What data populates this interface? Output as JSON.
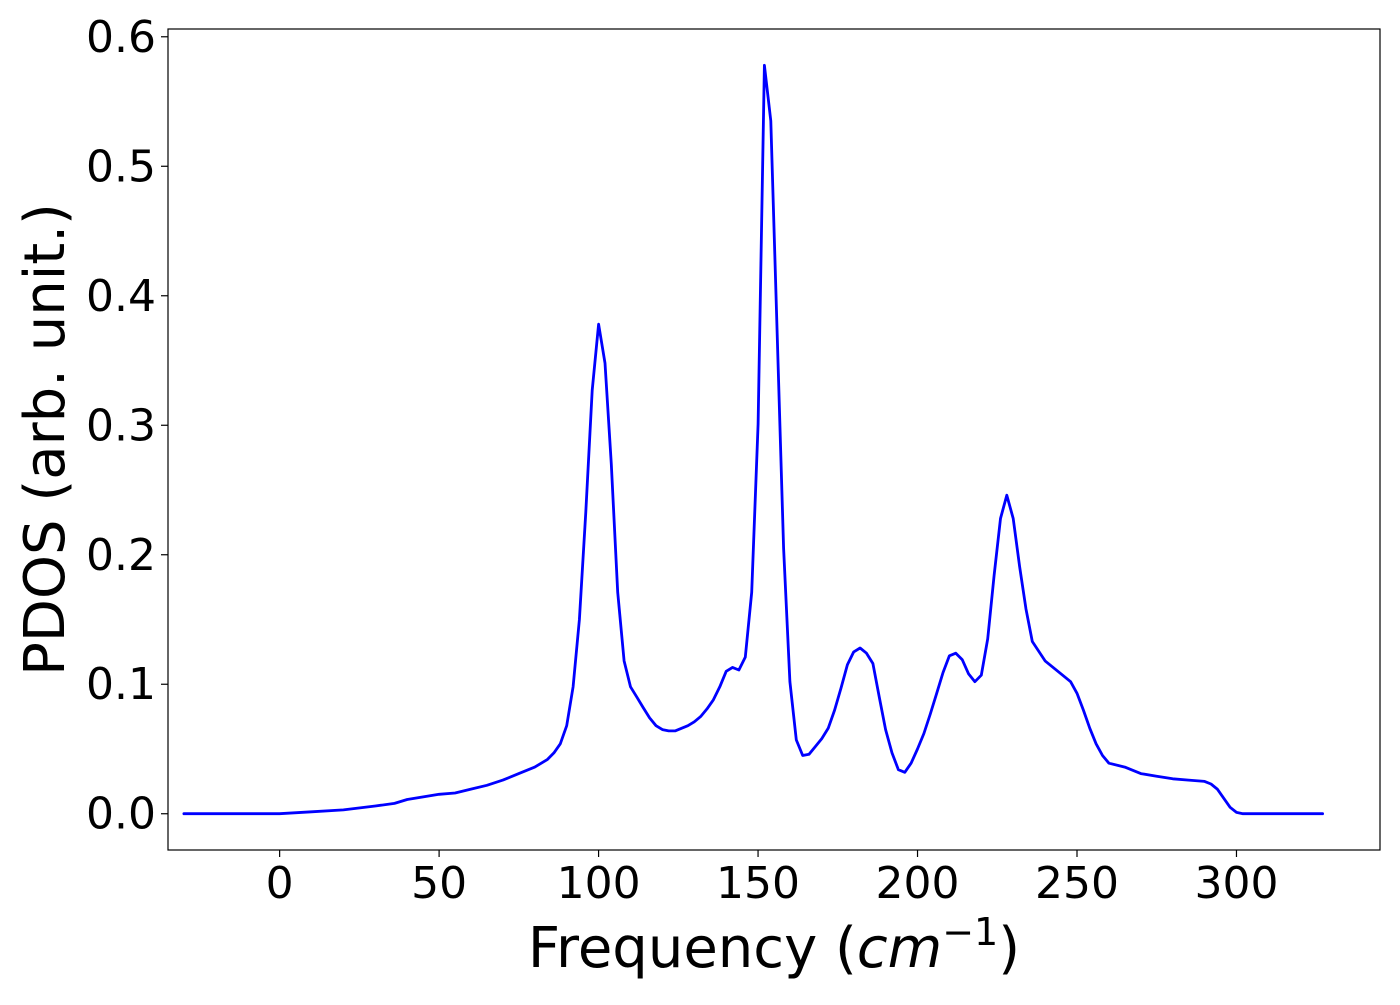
{
  "chart_data": {
    "type": "line",
    "title": "",
    "xlabel_prefix": "Frequency (",
    "xlabel_italic": "cm",
    "xlabel_superscript": "−1",
    "xlabel_suffix": ")",
    "ylabel": "PDOS (arb. unit.)",
    "xlim": [
      -35,
      345
    ],
    "ylim": [
      -0.028,
      0.606
    ],
    "xticks": [
      0,
      50,
      100,
      150,
      200,
      250,
      300
    ],
    "xtick_labels": [
      "0",
      "50",
      "100",
      "150",
      "200",
      "250",
      "300"
    ],
    "yticks": [
      0.0,
      0.1,
      0.2,
      0.3,
      0.4,
      0.5,
      0.6
    ],
    "ytick_labels": [
      "0.0",
      "0.1",
      "0.2",
      "0.3",
      "0.4",
      "0.5",
      "0.6"
    ],
    "grid": false,
    "legend": "none",
    "line_color": "#0000ff",
    "series": [
      {
        "x": [
          -30,
          0,
          10,
          20,
          30,
          36,
          40,
          45,
          50,
          55,
          60,
          65,
          70,
          75,
          80,
          84,
          86,
          88,
          90,
          92,
          94,
          96,
          98,
          100,
          102,
          104,
          106,
          108,
          110,
          112,
          114,
          116,
          118,
          120,
          122,
          124,
          126,
          128,
          130,
          132,
          134,
          136,
          138,
          140,
          142,
          144,
          146,
          148,
          150,
          152,
          154,
          156,
          158,
          160,
          162,
          164,
          166,
          168,
          170,
          172,
          174,
          176,
          178,
          180,
          182,
          184,
          186,
          188,
          190,
          192,
          194,
          196,
          198,
          200,
          202,
          204,
          206,
          208,
          210,
          212,
          214,
          216,
          218,
          220,
          222,
          224,
          226,
          228,
          230,
          232,
          234,
          236,
          240,
          245,
          248,
          250,
          252,
          254,
          256,
          258,
          260,
          265,
          270,
          275,
          280,
          285,
          290,
          292,
          294,
          296,
          298,
          300,
          302,
          305,
          310,
          320,
          327
        ],
        "y": [
          0.0,
          0.0,
          0.0015,
          0.003,
          0.006,
          0.008,
          0.011,
          0.013,
          0.015,
          0.016,
          0.019,
          0.022,
          0.026,
          0.031,
          0.036,
          0.042,
          0.047,
          0.054,
          0.068,
          0.098,
          0.15,
          0.233,
          0.327,
          0.378,
          0.348,
          0.27,
          0.171,
          0.118,
          0.098,
          0.09,
          0.082,
          0.074,
          0.068,
          0.065,
          0.064,
          0.064,
          0.066,
          0.068,
          0.071,
          0.075,
          0.081,
          0.088,
          0.098,
          0.11,
          0.113,
          0.111,
          0.121,
          0.171,
          0.301,
          0.578,
          0.535,
          0.37,
          0.205,
          0.102,
          0.057,
          0.045,
          0.046,
          0.052,
          0.058,
          0.066,
          0.08,
          0.097,
          0.115,
          0.125,
          0.128,
          0.124,
          0.116,
          0.09,
          0.065,
          0.047,
          0.034,
          0.032,
          0.039,
          0.05,
          0.062,
          0.077,
          0.093,
          0.109,
          0.122,
          0.124,
          0.119,
          0.108,
          0.102,
          0.107,
          0.135,
          0.184,
          0.228,
          0.246,
          0.228,
          0.191,
          0.158,
          0.133,
          0.118,
          0.108,
          0.102,
          0.093,
          0.08,
          0.066,
          0.054,
          0.045,
          0.039,
          0.036,
          0.031,
          0.029,
          0.027,
          0.026,
          0.025,
          0.023,
          0.019,
          0.012,
          0.005,
          0.001,
          0.0,
          0.0,
          0.0,
          0.0,
          0.0
        ]
      }
    ]
  }
}
